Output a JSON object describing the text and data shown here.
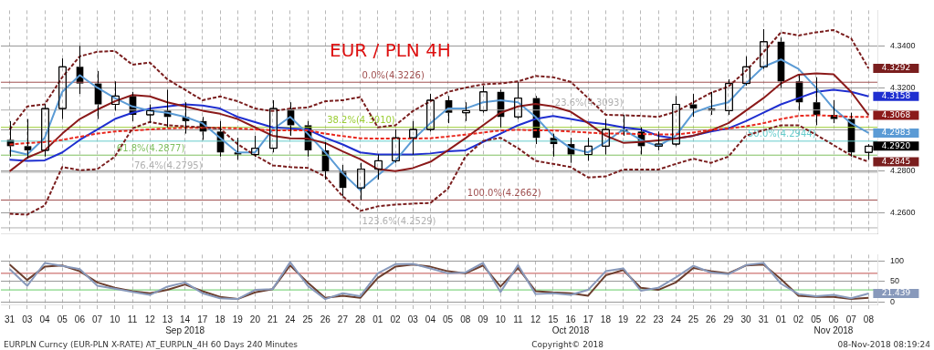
{
  "chart_data": [
    {
      "type": "candlestick",
      "title": "EUR / PLN 4H",
      "color": "#000000",
      "ohlc": [
        [
          4.295,
          4.304,
          4.287,
          4.292
        ],
        [
          4.292,
          4.305,
          4.286,
          4.29
        ],
        [
          4.29,
          4.312,
          4.287,
          4.31
        ],
        [
          4.31,
          4.334,
          4.305,
          4.33
        ],
        [
          4.33,
          4.34,
          4.317,
          4.322
        ],
        [
          4.322,
          4.328,
          4.305,
          4.312
        ],
        [
          4.312,
          4.323,
          4.309,
          4.316
        ],
        [
          4.316,
          4.318,
          4.304,
          4.307
        ],
        [
          4.307,
          4.312,
          4.303,
          4.309
        ],
        [
          4.309,
          4.319,
          4.301,
          4.306
        ],
        [
          4.306,
          4.313,
          4.298,
          4.304
        ],
        [
          4.304,
          4.306,
          4.295,
          4.299
        ],
        [
          4.299,
          4.304,
          4.287,
          4.289
        ],
        [
          4.289,
          4.296,
          4.2855,
          4.288
        ],
        [
          4.288,
          4.297,
          4.287,
          4.291
        ],
        [
          4.291,
          4.314,
          4.289,
          4.31
        ],
        [
          4.31,
          4.313,
          4.297,
          4.302
        ],
        [
          4.302,
          4.304,
          4.287,
          4.29
        ],
        [
          4.29,
          4.294,
          4.276,
          4.28
        ],
        [
          4.28,
          4.283,
          4.268,
          4.272
        ],
        [
          4.272,
          4.284,
          4.2662,
          4.281
        ],
        [
          4.281,
          4.288,
          4.276,
          4.285
        ],
        [
          4.285,
          4.3,
          4.284,
          4.296
        ],
        [
          4.296,
          4.304,
          4.288,
          4.3
        ],
        [
          4.3,
          4.317,
          4.299,
          4.314
        ],
        [
          4.314,
          4.316,
          4.303,
          4.308
        ],
        [
          4.308,
          4.313,
          4.304,
          4.309
        ],
        [
          4.309,
          4.321,
          4.308,
          4.318
        ],
        [
          4.318,
          4.319,
          4.301,
          4.306
        ],
        [
          4.306,
          4.3226,
          4.305,
          4.315
        ],
        [
          4.315,
          4.316,
          4.293,
          4.296
        ],
        [
          4.296,
          4.298,
          4.287,
          4.293
        ],
        [
          4.293,
          4.296,
          4.284,
          4.288
        ],
        [
          4.288,
          4.296,
          4.285,
          4.292
        ],
        [
          4.292,
          4.305,
          4.288,
          4.3
        ],
        [
          4.3,
          4.307,
          4.297,
          4.299
        ],
        [
          4.299,
          4.301,
          4.288,
          4.292
        ],
        [
          4.292,
          4.299,
          4.29,
          4.293
        ],
        [
          4.293,
          4.316,
          4.292,
          4.312
        ],
        [
          4.312,
          4.317,
          4.306,
          4.31
        ],
        [
          4.31,
          4.318,
          4.307,
          4.309
        ],
        [
          4.309,
          4.324,
          4.307,
          4.322
        ],
        [
          4.322,
          4.335,
          4.321,
          4.33
        ],
        [
          4.33,
          4.348,
          4.329,
          4.342
        ],
        [
          4.342,
          4.344,
          4.32,
          4.323
        ],
        [
          4.323,
          4.326,
          4.309,
          4.313
        ],
        [
          4.313,
          4.325,
          4.302,
          4.307
        ],
        [
          4.307,
          4.314,
          4.303,
          4.305
        ],
        [
          4.305,
          4.308,
          4.287,
          4.289
        ],
        [
          4.289,
          4.293,
          4.2855,
          4.292
        ]
      ],
      "value_labels": [
        null,
        null,
        null,
        null,
        null,
        null,
        null,
        null,
        null,
        null,
        null,
        null,
        null,
        null,
        null,
        null,
        null,
        null,
        null,
        null,
        null,
        null,
        null,
        null,
        null,
        null,
        null,
        null,
        null,
        null,
        null,
        null,
        null,
        null,
        null,
        null,
        null,
        null,
        null,
        null,
        null,
        null,
        null,
        null,
        null,
        null,
        null,
        null,
        null,
        "4.2920"
      ],
      "series": [
        {
          "type": "line",
          "color": "#7a1e1e",
          "line_style": "dashed",
          "values": [
            4.3,
            4.311,
            4.312,
            4.325,
            4.335,
            4.3372,
            4.3376,
            4.331,
            4.332,
            4.324,
            4.319,
            4.314,
            4.3158,
            4.3135,
            4.31,
            4.3088,
            4.31,
            4.3105,
            4.3135,
            4.314,
            4.3155,
            4.301,
            4.302,
            4.3088,
            4.3135,
            4.318,
            4.32,
            4.3216,
            4.322,
            4.323,
            4.3256,
            4.325,
            4.3228,
            4.315,
            4.307,
            4.3068,
            4.3065,
            4.306,
            4.3085,
            4.313,
            4.3175,
            4.3205,
            4.328,
            4.337,
            4.3465,
            4.345,
            4.3465,
            4.3476,
            4.3436,
            4.3292
          ],
          "value_labels": [
            null,
            null,
            null,
            null,
            null,
            null,
            null,
            null,
            null,
            null,
            null,
            null,
            null,
            null,
            null,
            null,
            null,
            null,
            null,
            null,
            null,
            null,
            null,
            null,
            null,
            null,
            null,
            null,
            null,
            null,
            null,
            null,
            null,
            null,
            null,
            null,
            null,
            null,
            null,
            null,
            null,
            null,
            null,
            null,
            null,
            null,
            null,
            null,
            null,
            "4.3292"
          ]
        },
        {
          "type": "line",
          "color": "#7a1e1e",
          "line_style": "dashed",
          "values": [
            4.2596,
            4.2592,
            4.2636,
            4.282,
            4.2805,
            4.281,
            4.287,
            4.3005,
            4.3036,
            4.302,
            4.3015,
            4.301,
            4.3005,
            4.293,
            4.2876,
            4.2828,
            4.282,
            4.2816,
            4.2775,
            4.268,
            4.261,
            4.2632,
            4.264,
            4.2645,
            4.2648,
            4.2716,
            4.287,
            4.2945,
            4.296,
            4.291,
            4.285,
            4.2835,
            4.282,
            4.277,
            4.2775,
            4.2808,
            4.2808,
            4.2808,
            4.2835,
            4.286,
            4.284,
            4.287,
            4.297,
            4.2996,
            4.302,
            4.302,
            4.2975,
            4.2925,
            4.2876,
            4.2845
          ],
          "value_labels": [
            null,
            null,
            null,
            null,
            null,
            null,
            null,
            null,
            null,
            null,
            null,
            null,
            null,
            null,
            null,
            null,
            null,
            null,
            null,
            null,
            null,
            null,
            null,
            null,
            null,
            null,
            null,
            null,
            null,
            null,
            null,
            null,
            null,
            null,
            null,
            null,
            null,
            null,
            null,
            null,
            null,
            null,
            null,
            null,
            null,
            null,
            null,
            null,
            null,
            "4.2845"
          ]
        },
        {
          "type": "line",
          "color": "#e8281e",
          "line_style": "dashed",
          "values": [
            4.2928,
            4.2935,
            4.294,
            4.295,
            4.2965,
            4.298,
            4.299,
            4.2995,
            4.3,
            4.3005,
            4.3008,
            4.3008,
            4.3008,
            4.3005,
            4.3,
            4.2996,
            4.2996,
            4.2996,
            4.298,
            4.2968,
            4.2958,
            4.2956,
            4.2956,
            4.2956,
            4.2958,
            4.2966,
            4.2975,
            4.2985,
            4.2995,
            4.2998,
            4.2996,
            4.2995,
            4.299,
            4.2985,
            4.298,
            4.298,
            4.2978,
            4.2976,
            4.2976,
            4.2985,
            4.2998,
            4.3005,
            4.3015,
            4.303,
            4.305,
            4.3065,
            4.3068,
            4.3065,
            4.306,
            4.306
          ]
        },
        {
          "type": "line",
          "color": "#8b1a1a",
          "line_style": "solid",
          "values": [
            4.28,
            4.2865,
            4.29,
            4.298,
            4.305,
            4.3095,
            4.3135,
            4.3165,
            4.3158,
            4.313,
            4.311,
            4.309,
            4.3075,
            4.305,
            4.301,
            4.297,
            4.2958,
            4.2956,
            4.2935,
            4.2895,
            4.2858,
            4.281,
            4.28,
            4.2815,
            4.2845,
            4.29,
            4.2958,
            4.302,
            4.308,
            4.311,
            4.3122,
            4.311,
            4.3085,
            4.303,
            4.297,
            4.2936,
            4.294,
            4.2948,
            4.2956,
            4.297,
            4.2995,
            4.303,
            4.309,
            4.315,
            4.322,
            4.3262,
            4.3268,
            4.3264,
            4.318,
            4.3068
          ],
          "value_labels": [
            null,
            null,
            null,
            null,
            null,
            null,
            null,
            null,
            null,
            null,
            null,
            null,
            null,
            null,
            null,
            null,
            null,
            null,
            null,
            null,
            null,
            null,
            null,
            null,
            null,
            null,
            null,
            null,
            null,
            null,
            null,
            null,
            null,
            null,
            null,
            null,
            null,
            null,
            null,
            null,
            null,
            null,
            null,
            null,
            null,
            null,
            null,
            null,
            null,
            "4.3068"
          ]
        },
        {
          "type": "line",
          "color": "#5b9bd5",
          "line_style": "solid",
          "values": [
            4.29,
            4.288,
            4.296,
            4.318,
            4.326,
            4.32,
            4.315,
            4.311,
            4.309,
            4.308,
            4.306,
            4.303,
            4.296,
            4.289,
            4.289,
            4.3,
            4.306,
            4.298,
            4.289,
            4.279,
            4.271,
            4.278,
            4.285,
            4.295,
            4.303,
            4.31,
            4.31,
            4.313,
            4.314,
            4.313,
            4.306,
            4.297,
            4.291,
            4.289,
            4.294,
            4.3,
            4.295,
            4.292,
            4.297,
            4.308,
            4.311,
            4.313,
            4.322,
            4.33,
            4.3335,
            4.329,
            4.32,
            4.31,
            4.303,
            4.2983
          ],
          "value_labels": [
            null,
            null,
            null,
            null,
            null,
            null,
            null,
            null,
            null,
            null,
            null,
            null,
            null,
            null,
            null,
            null,
            null,
            null,
            null,
            null,
            null,
            null,
            null,
            null,
            null,
            null,
            null,
            null,
            null,
            null,
            null,
            null,
            null,
            null,
            null,
            null,
            null,
            null,
            null,
            null,
            null,
            null,
            null,
            null,
            null,
            null,
            null,
            null,
            null,
            "4.2983"
          ]
        },
        {
          "type": "line",
          "color": "#1f2fd0",
          "line_style": "solid",
          "values": [
            4.2855,
            4.285,
            4.2852,
            4.289,
            4.295,
            4.3,
            4.305,
            4.308,
            4.31,
            4.311,
            4.312,
            4.3115,
            4.31,
            4.306,
            4.3035,
            4.301,
            4.3005,
            4.3,
            4.296,
            4.2928,
            4.289,
            4.288,
            4.288,
            4.288,
            4.2885,
            4.2895,
            4.29,
            4.294,
            4.298,
            4.302,
            4.305,
            4.3064,
            4.305,
            4.3035,
            4.3025,
            4.301,
            4.3,
            4.297,
            4.2956,
            4.297,
            4.299,
            4.3005,
            4.304,
            4.308,
            4.312,
            4.315,
            4.318,
            4.319,
            4.318,
            4.3158
          ],
          "value_labels": [
            null,
            null,
            null,
            null,
            null,
            null,
            null,
            null,
            null,
            null,
            null,
            null,
            null,
            null,
            null,
            null,
            null,
            null,
            null,
            null,
            null,
            null,
            null,
            null,
            null,
            null,
            null,
            null,
            null,
            null,
            null,
            null,
            null,
            null,
            null,
            null,
            null,
            null,
            null,
            null,
            null,
            null,
            null,
            null,
            null,
            null,
            null,
            null,
            null,
            "4.3158"
          ]
        }
      ],
      "ylim": [
        4.25,
        4.357
      ],
      "yticks": [
        {
          "value": 4.26,
          "label": "4.2600"
        },
        {
          "value": 4.28,
          "label": "4.2800"
        },
        {
          "value": 4.3,
          "label": null
        },
        {
          "value": 4.32,
          "label": "4.3200"
        },
        {
          "value": 4.34,
          "label": "4.3400"
        }
      ],
      "ref_lines": [
        {
          "axis": "y",
          "value": 4.3226,
          "label": "0.0%(4.3226)",
          "color": "#a05050"
        },
        {
          "axis": "y",
          "value": 4.3093,
          "label": "23.6%(4.3093)",
          "color": "#b0b0b0"
        },
        {
          "axis": "y",
          "value": 4.301,
          "label": "38.2%(4.3010)",
          "color": "#9acd32"
        },
        {
          "axis": "y",
          "value": 4.2944,
          "label": "50.0%(4.2944)",
          "color": "#66cccc"
        },
        {
          "axis": "y",
          "value": 4.2877,
          "label": "61.8%(4.2877)",
          "color": "#7fbf5f"
        },
        {
          "axis": "y",
          "value": 4.2795,
          "label": "76.4%(4.2795)",
          "color": "#b0b0b0"
        },
        {
          "axis": "y",
          "value": 4.2662,
          "label": "100.0%(4.2662)",
          "color": "#a05050"
        },
        {
          "axis": "y",
          "value": 4.2529,
          "label": "123.6%(4.2529)",
          "color": "#b0b0b0"
        }
      ],
      "grid": true,
      "tick_labels": "y",
      "marker": "none"
    },
    {
      "type": "line",
      "categories": [
        "31",
        "03",
        "04",
        "05",
        "06",
        "07",
        "10",
        "11",
        "12",
        "13",
        "14\nSep 2018",
        "17",
        "18",
        "19",
        "20",
        "21",
        "24",
        "25",
        "26",
        "27",
        "28",
        "01",
        "02",
        "03",
        "04",
        "05",
        "08",
        "09",
        "10",
        "11",
        "12",
        "15",
        "16\nOct 2018",
        "17",
        "18",
        "19",
        "22",
        "23",
        "24",
        "25",
        "26",
        "29",
        "30",
        "31",
        "01",
        "02",
        "05",
        "06\nNov 2018",
        "07",
        "08"
      ],
      "series": [
        {
          "color": "#8899bb",
          "values": [
            80,
            40,
            95,
            88,
            80,
            40,
            33,
            25,
            18,
            38,
            48,
            22,
            10,
            8,
            30,
            32,
            97,
            40,
            8,
            22,
            15,
            70,
            92,
            93,
            82,
            70,
            72,
            95,
            25,
            90,
            20,
            22,
            18,
            30,
            75,
            82,
            28,
            35,
            60,
            88,
            72,
            68,
            90,
            95,
            45,
            20,
            15,
            18,
            10,
            21.439
          ],
          "value_labels": [
            null,
            null,
            null,
            null,
            null,
            null,
            null,
            null,
            null,
            null,
            null,
            null,
            null,
            null,
            null,
            null,
            null,
            null,
            null,
            null,
            null,
            null,
            null,
            null,
            null,
            null,
            null,
            null,
            null,
            null,
            null,
            null,
            null,
            null,
            null,
            null,
            null,
            null,
            null,
            null,
            null,
            null,
            null,
            null,
            null,
            null,
            null,
            null,
            null,
            "21.439"
          ]
        },
        {
          "color": "#6b3e2e",
          "values": [
            91,
            54,
            86,
            89,
            75,
            48,
            35,
            27,
            22,
            30,
            43,
            27,
            13,
            8,
            24,
            32,
            89,
            48,
            11,
            16,
            11,
            59,
            86,
            91,
            86,
            75,
            70,
            89,
            38,
            83,
            27,
            24,
            22,
            16,
            65,
            78,
            35,
            30,
            48,
            83,
            75,
            70,
            89,
            91,
            56,
            16,
            13,
            13,
            8,
            11
          ]
        }
      ],
      "ylim": [
        -5,
        115
      ],
      "yticks": [
        0,
        50,
        100
      ],
      "ref_lines": [
        {
          "axis": "y",
          "value": 70,
          "color": "#c0504d"
        },
        {
          "axis": "y",
          "value": 30,
          "color": "#66cc66"
        }
      ],
      "grid": true,
      "marker": "none",
      "line_style": "solid",
      "annotations": [
        "EURPLN Curncy (EUR-PLN X-RATE) AT_EURPLN_4H 60 Days 240 Minutes",
        "Copyright© 2018",
        "08-Nov-2018 08:19:24"
      ]
    }
  ]
}
